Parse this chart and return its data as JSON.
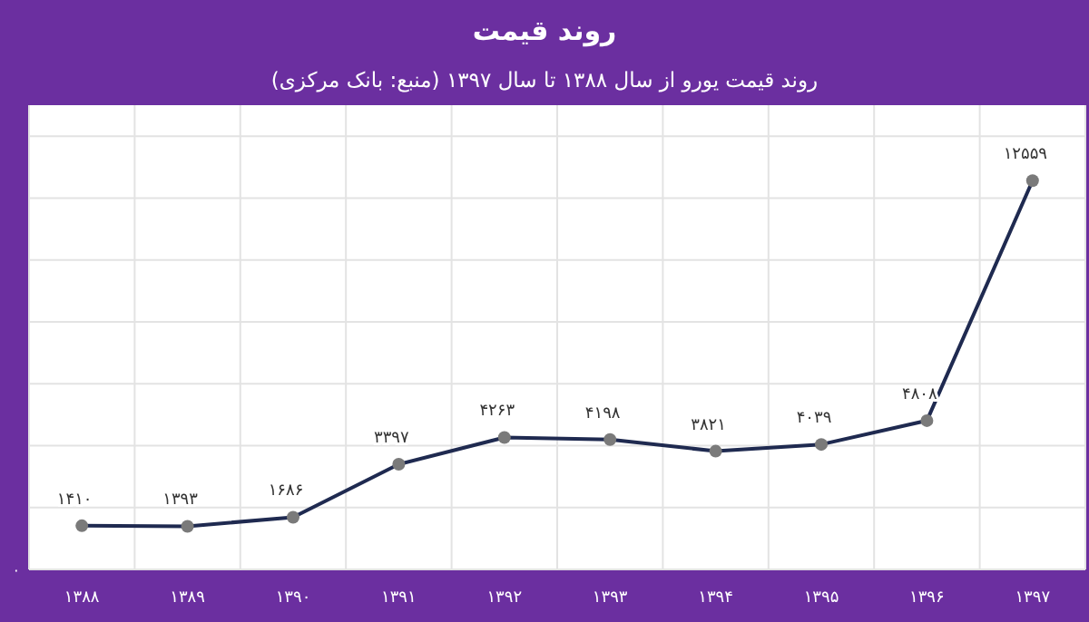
{
  "chart_data": {
    "type": "line",
    "title": "روند قیمت",
    "subtitle": "روند قیمت یورو از سال ۱۳۸۸ تا سال ۱۳۹۷ (منبع: بانک مرکزی)",
    "categories": [
      "۱۳۸۸",
      "۱۳۸۹",
      "۱۳۹۰",
      "۱۳۹۱",
      "۱۳۹۲",
      "۱۳۹۳",
      "۱۳۹۴",
      "۱۳۹۵",
      "۱۳۹۶",
      "۱۳۹۷"
    ],
    "series": [
      {
        "color": "#1f2a50",
        "values": [
          1410,
          1393,
          1686,
          3397,
          4263,
          4198,
          3821,
          4039,
          4808,
          12559
        ],
        "value_labels": [
          "۱۴۱۰",
          "۱۳۹۳",
          "۱۶۸۶",
          "۳۳۹۷",
          "۴۲۶۳",
          "۴۱۹۸",
          "۳۸۲۱",
          "۴۰۳۹",
          "۴۸۰۸",
          "۱۲۵۵۹"
        ]
      }
    ],
    "ylim": [
      0,
      15000
    ],
    "annotations": [
      "۰"
    ],
    "yticks": [
      {
        "value": 0,
        "label": null
      },
      {
        "value": 2000,
        "label": null
      },
      {
        "value": 4000,
        "label": null
      },
      {
        "value": 6000,
        "label": null
      },
      {
        "value": 8000,
        "label": null
      },
      {
        "value": 10000,
        "label": null
      },
      {
        "value": 12000,
        "label": null
      },
      {
        "value": 14000,
        "label": null
      }
    ],
    "grid": true,
    "marker": "circle",
    "line_style": "solid"
  }
}
